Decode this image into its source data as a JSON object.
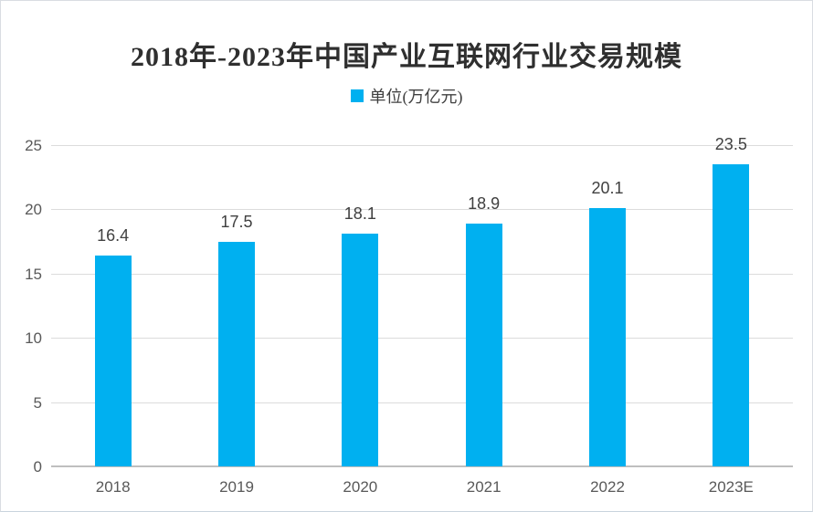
{
  "chart_data": {
    "type": "bar",
    "title": "2018年-2023年中国产业互联网行业交易规模",
    "legend_label": "单位(万亿元)",
    "legend_position": "top",
    "categories": [
      "2018",
      "2019",
      "2020",
      "2021",
      "2022",
      "2023E"
    ],
    "values": [
      16.4,
      17.5,
      18.1,
      18.9,
      20.1,
      23.5
    ],
    "xlabel": "",
    "ylabel": "",
    "ylim": [
      0,
      25
    ],
    "ytick_step": 5,
    "ytick_labels": [
      "0",
      "5",
      "10",
      "15",
      "20",
      "25"
    ],
    "grid": true,
    "colors": {
      "bar": "#00B0F0",
      "gridline": "#dcdcdc",
      "axis_line": "#bfbfbf",
      "title_text": "#2f2f2f",
      "value_label_text": "#404040",
      "tick_label_text": "#595959",
      "legend_text": "#404040"
    }
  }
}
